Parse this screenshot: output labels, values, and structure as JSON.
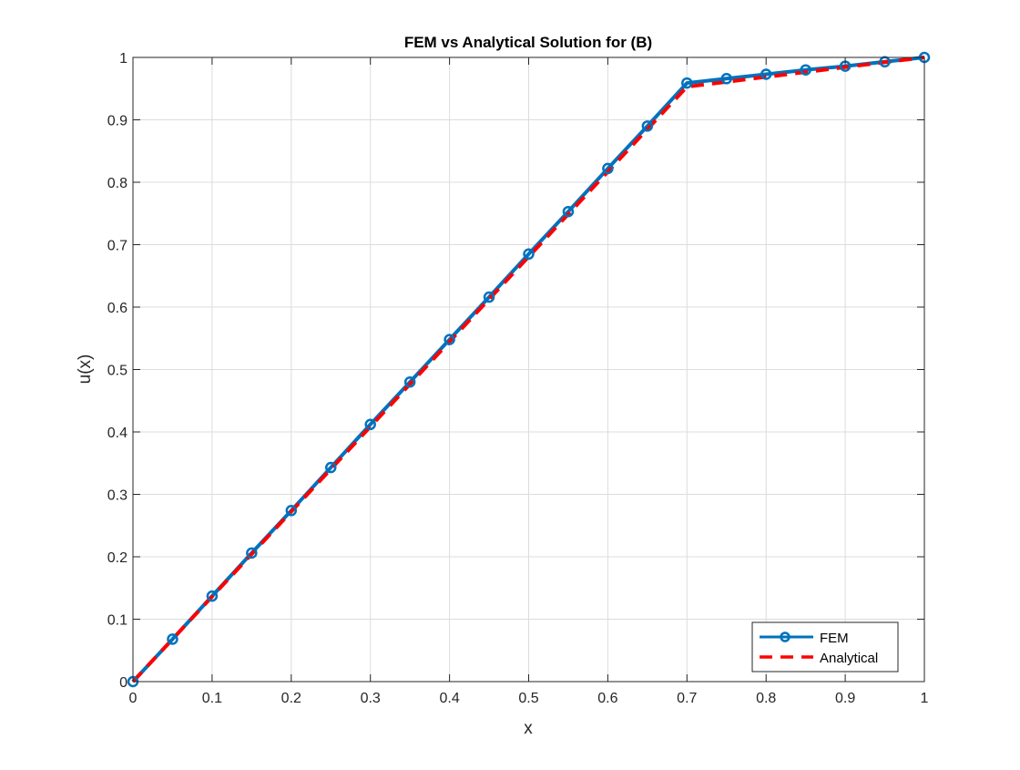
{
  "chart_data": {
    "type": "line",
    "title": "FEM vs Analytical Solution for (B)",
    "xlabel": "x",
    "ylabel": "u(x)",
    "xlim": [
      0,
      1
    ],
    "ylim": [
      0,
      1
    ],
    "xticks": [
      "0",
      "0.1",
      "0.2",
      "0.3",
      "0.4",
      "0.5",
      "0.6",
      "0.7",
      "0.8",
      "0.9",
      "1"
    ],
    "yticks": [
      "0",
      "0.1",
      "0.2",
      "0.3",
      "0.4",
      "0.5",
      "0.6",
      "0.7",
      "0.8",
      "0.9",
      "1"
    ],
    "grid": true,
    "legend_position": "bottom-right",
    "series": [
      {
        "name": "FEM",
        "color": "#0072BD",
        "style": "solid with circle markers",
        "x": [
          0,
          0.05,
          0.1,
          0.15,
          0.2,
          0.25,
          0.3,
          0.35,
          0.4,
          0.45,
          0.5,
          0.55,
          0.6,
          0.65,
          0.7,
          0.75,
          0.8,
          0.85,
          0.9,
          0.95,
          1
        ],
        "y": [
          0,
          0.068,
          0.137,
          0.206,
          0.274,
          0.343,
          0.412,
          0.48,
          0.548,
          0.616,
          0.685,
          0.753,
          0.822,
          0.89,
          0.959,
          0.966,
          0.973,
          0.98,
          0.986,
          0.993,
          1
        ]
      },
      {
        "name": "Analytical",
        "color": "#FF0000",
        "style": "dashed",
        "x": [
          0,
          0.7,
          1
        ],
        "y": [
          0,
          0.953,
          1
        ]
      }
    ]
  }
}
